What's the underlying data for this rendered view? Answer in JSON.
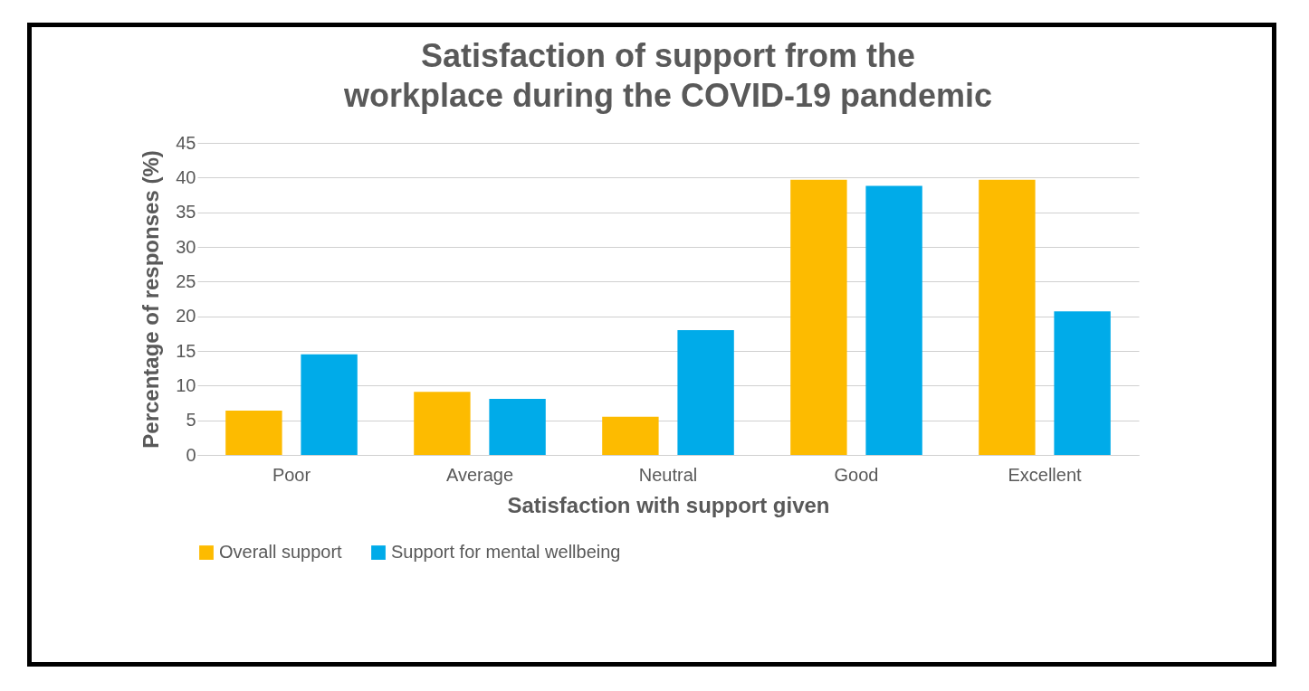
{
  "chart_data": {
    "type": "bar",
    "title": "Satisfaction of support from the workplace during the COVID-19 pandemic",
    "xlabel": "Satisfaction with support given",
    "ylabel": "Percentage of responses (%)",
    "categories": [
      "Poor",
      "Average",
      "Neutral",
      "Good",
      "Excellent"
    ],
    "series": [
      {
        "name": "Overall support",
        "color": "#fdbb00",
        "values": [
          6.4,
          9.1,
          5.5,
          39.7,
          39.7
        ]
      },
      {
        "name": "Support for mental wellbeing",
        "color": "#00abe9",
        "values": [
          14.5,
          8.1,
          18.0,
          38.8,
          20.7
        ]
      }
    ],
    "ylim": [
      0,
      45
    ],
    "yticks": [
      0,
      5,
      10,
      15,
      20,
      25,
      30,
      35,
      40,
      45
    ],
    "grid": "y",
    "legend": "bottom"
  }
}
